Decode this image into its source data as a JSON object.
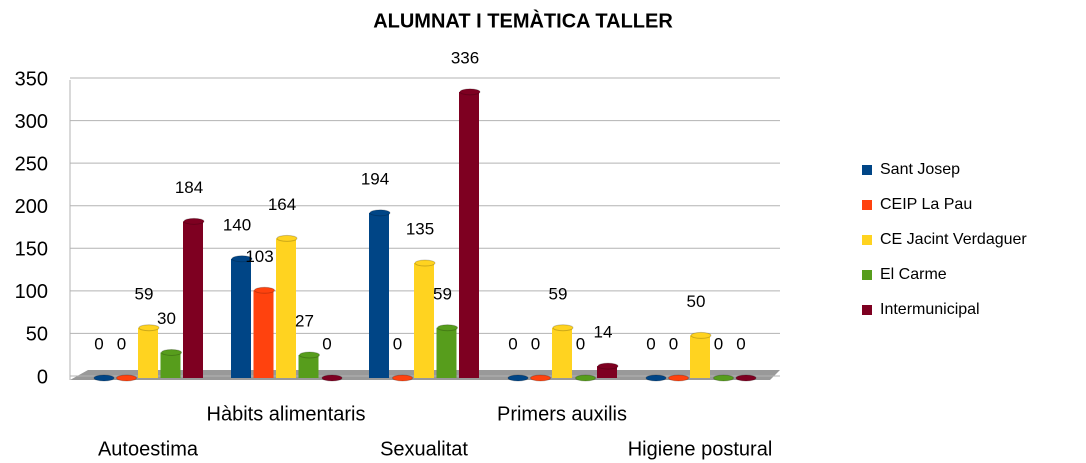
{
  "chart_data": {
    "type": "bar",
    "title": "ALUMNAT I TEMÀTICA TALLER",
    "categories": [
      "Autoestima",
      "Hàbits alimentaris",
      "Sexualitat",
      "Primers auxilis",
      "Higiene postural"
    ],
    "series": [
      {
        "name": "Sant Josep",
        "color": "#004586",
        "values": [
          0,
          140,
          194,
          0,
          0
        ]
      },
      {
        "name": "CEIP La Pau",
        "color": "#ff420e",
        "values": [
          0,
          103,
          0,
          0,
          0
        ]
      },
      {
        "name": "CE Jacint Verdaguer",
        "color": "#ffd320",
        "values": [
          59,
          164,
          135,
          59,
          50
        ]
      },
      {
        "name": "El Carme",
        "color": "#579d1c",
        "values": [
          30,
          27,
          59,
          0,
          0
        ]
      },
      {
        "name": "Intermunicipal",
        "color": "#7e0021",
        "values": [
          184,
          0,
          336,
          14,
          0
        ]
      }
    ],
    "ylim": [
      0,
      350
    ],
    "yticks": [
      0,
      50,
      100,
      150,
      200,
      250,
      300,
      350
    ],
    "grid": true,
    "legend": "right"
  }
}
